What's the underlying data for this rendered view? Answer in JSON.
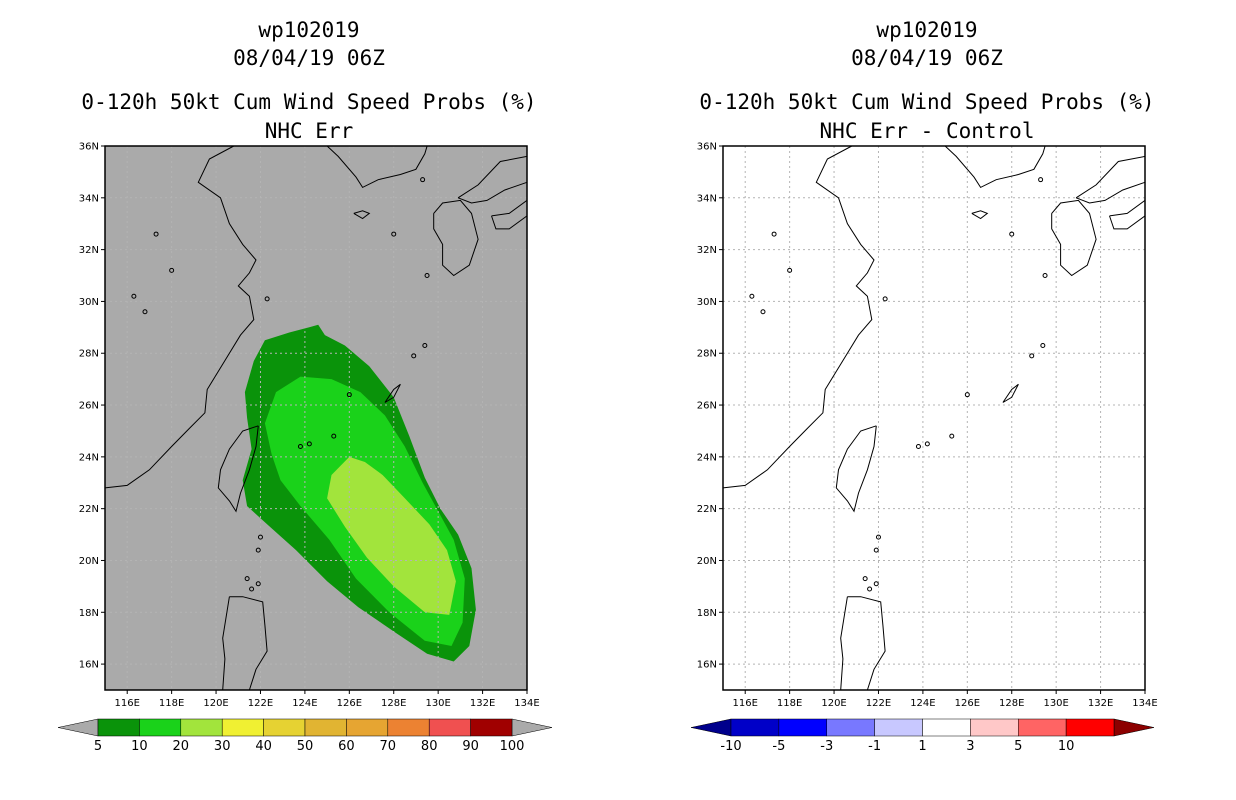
{
  "left_panel": {
    "title_storm": "wp102019",
    "title_time": "08/04/19 06Z",
    "title_product": "0-120h 50kt Cum Wind Speed Probs (%)",
    "title_method": "NHC Err",
    "map_background": "#aaaaaa",
    "colorbar": [
      {
        "label": "5",
        "color": "#0a930a"
      },
      {
        "label": "10",
        "color": "#1ad21a"
      },
      {
        "label": "20",
        "color": "#a2e43c"
      },
      {
        "label": "30",
        "color": "#f0f032"
      },
      {
        "label": "40",
        "color": "#e6d232"
      },
      {
        "label": "50",
        "color": "#e1b432"
      },
      {
        "label": "60",
        "color": "#e6a532"
      },
      {
        "label": "70",
        "color": "#ec8232"
      },
      {
        "label": "80",
        "color": "#f05050"
      },
      {
        "label": "90",
        "color": "#a00000"
      },
      {
        "label": "100",
        "color": "#8c00e6"
      }
    ],
    "under_color": "#aaaaaa",
    "over_color": "#aaaaaa",
    "end_label": "100"
  },
  "right_panel": {
    "title_storm": "wp102019",
    "title_time": "08/04/19 06Z",
    "title_product": "0-120h 50kt Cum Wind Speed Probs (%)",
    "title_method": "NHC Err - Control",
    "map_background": "#ffffff",
    "colorbar": [
      {
        "label": "-10",
        "color": "#0000c8"
      },
      {
        "label": "-5",
        "color": "#0000ff"
      },
      {
        "label": "-3",
        "color": "#7878ff"
      },
      {
        "label": "-1",
        "color": "#c8c8ff"
      },
      {
        "label": "1",
        "color": "#ffffff"
      },
      {
        "label": "3",
        "color": "#ffc8c8"
      },
      {
        "label": "5",
        "color": "#ff6464"
      },
      {
        "label": "10",
        "color": "#ff0000"
      }
    ],
    "under_color": "#00008c",
    "over_color": "#8c0000",
    "end_label": ""
  },
  "map_extent": {
    "lon": [
      115,
      134
    ],
    "lat": [
      15,
      36
    ]
  },
  "lon_ticks": [
    "116E",
    "118E",
    "120E",
    "122E",
    "124E",
    "126E",
    "128E",
    "130E",
    "132E",
    "134E"
  ],
  "lat_ticks": [
    "16N",
    "18N",
    "20N",
    "22N",
    "24N",
    "26N",
    "28N",
    "30N",
    "32N",
    "34N",
    "36N"
  ],
  "probability_field": [
    {
      "level": "5-10%",
      "color": "#0a930a",
      "lonlat": [
        [
          124.2,
          29.0
        ],
        [
          123.3,
          28.8
        ],
        [
          122.2,
          28.5
        ],
        [
          121.7,
          27.7
        ],
        [
          121.3,
          26.5
        ],
        [
          121.4,
          25.5
        ],
        [
          121.6,
          24.3
        ],
        [
          121.2,
          23.1
        ],
        [
          121.4,
          22.1
        ],
        [
          122.3,
          21.4
        ],
        [
          123.6,
          20.4
        ],
        [
          125.0,
          19.2
        ],
        [
          126.4,
          18.2
        ],
        [
          128.1,
          17.2
        ],
        [
          129.5,
          16.4
        ],
        [
          130.7,
          16.1
        ],
        [
          131.4,
          16.7
        ],
        [
          131.7,
          18.1
        ],
        [
          131.5,
          19.7
        ],
        [
          130.9,
          21.0
        ],
        [
          130.1,
          22.0
        ],
        [
          129.4,
          23.2
        ],
        [
          128.7,
          24.8
        ],
        [
          128.0,
          26.3
        ],
        [
          126.9,
          27.5
        ],
        [
          125.8,
          28.3
        ],
        [
          124.9,
          28.7
        ],
        [
          124.6,
          29.1
        ]
      ]
    },
    {
      "level": "10-20%",
      "color": "#1ad21a",
      "lonlat": [
        [
          123.8,
          27.1
        ],
        [
          122.7,
          26.5
        ],
        [
          122.2,
          25.3
        ],
        [
          122.5,
          24.1
        ],
        [
          122.9,
          23.1
        ],
        [
          123.8,
          22.1
        ],
        [
          125.1,
          20.8
        ],
        [
          126.3,
          19.3
        ],
        [
          127.8,
          18.0
        ],
        [
          129.4,
          16.9
        ],
        [
          130.6,
          16.7
        ],
        [
          131.1,
          17.6
        ],
        [
          131.2,
          19.3
        ],
        [
          130.7,
          20.8
        ],
        [
          130.0,
          21.9
        ],
        [
          129.3,
          23.0
        ],
        [
          128.5,
          24.4
        ],
        [
          127.6,
          25.6
        ],
        [
          126.5,
          26.5
        ],
        [
          125.2,
          27.0
        ]
      ]
    },
    {
      "level": "20-30%",
      "color": "#a2e43c",
      "lonlat": [
        [
          126.0,
          24.0
        ],
        [
          125.2,
          23.3
        ],
        [
          125.0,
          22.4
        ],
        [
          125.8,
          21.3
        ],
        [
          126.8,
          20.1
        ],
        [
          128.0,
          19.0
        ],
        [
          129.4,
          18.0
        ],
        [
          130.5,
          17.9
        ],
        [
          130.8,
          19.2
        ],
        [
          130.4,
          20.4
        ],
        [
          129.6,
          21.4
        ],
        [
          128.5,
          22.4
        ],
        [
          127.5,
          23.3
        ],
        [
          126.7,
          23.8
        ]
      ]
    }
  ]
}
